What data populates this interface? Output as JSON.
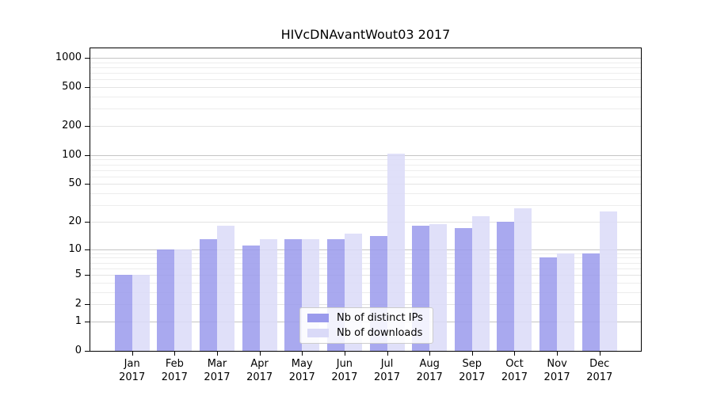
{
  "chart_data": {
    "type": "bar",
    "title": "HIVcDNAvantWout03 2017",
    "categories": [
      "Jan 2017",
      "Feb 2017",
      "Mar 2017",
      "Apr 2017",
      "May 2017",
      "Jun 2017",
      "Jul 2017",
      "Aug 2017",
      "Sep 2017",
      "Oct 2017",
      "Nov 2017",
      "Dec 2017"
    ],
    "series": [
      {
        "name": "Nb of distinct IPs",
        "color": "#9a9aec",
        "values": [
          5,
          10,
          13,
          11,
          13,
          13,
          14,
          18,
          17,
          20,
          8,
          9
        ]
      },
      {
        "name": "Nb of downloads",
        "color": "#dadaf8",
        "values": [
          5,
          10,
          18,
          13,
          13,
          15,
          103,
          19,
          23,
          28,
          9,
          26
        ]
      }
    ],
    "xlabel": "",
    "ylabel": "",
    "yscale": "log1p",
    "ylim": [
      0,
      1300
    ],
    "y_ticks": [
      0,
      1,
      2,
      5,
      10,
      20,
      50,
      100,
      200,
      500,
      1000
    ],
    "y_minor_ticks": [
      3,
      4,
      6,
      7,
      8,
      9,
      30,
      40,
      60,
      70,
      80,
      90,
      300,
      400,
      600,
      700,
      800,
      900
    ],
    "grid": "horizontal",
    "legend_position": "lower center",
    "grid_major_color": "#c4c4c4",
    "grid_mid_color": "#e3e3e3",
    "grid_minor_color": "#ededed"
  }
}
